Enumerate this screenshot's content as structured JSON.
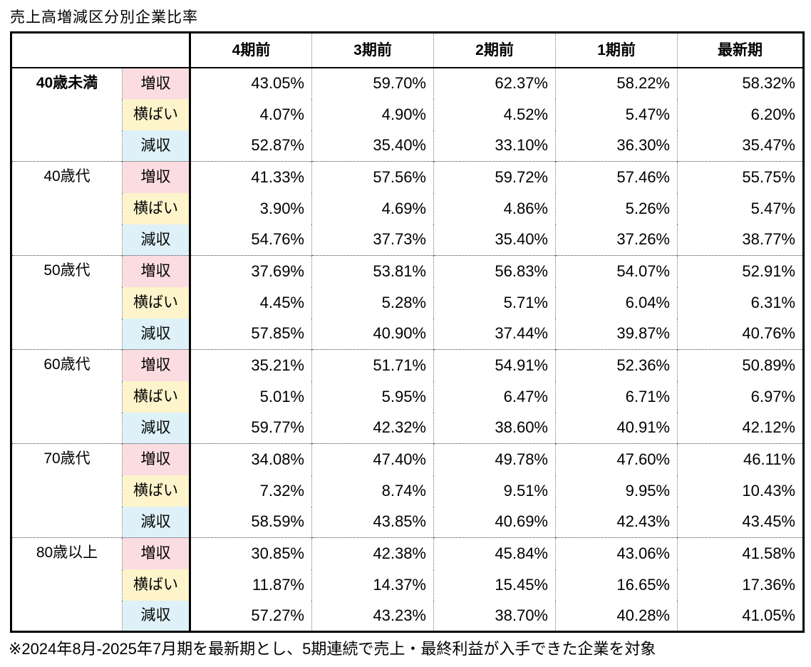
{
  "title": "売上高増減区分別企業比率",
  "footnote": "※2024年8月-2025年7月期を最新期とし、5期連続で売上・最終利益が入手できた企業を対象",
  "colors": {
    "increase_bg": "#fbdce1",
    "flat_bg": "#fdf4cb",
    "decrease_bg": "#def1f8",
    "border": "#000000",
    "text": "#000000"
  },
  "chart_data": {
    "type": "table",
    "title": "売上高増減区分別企業比率",
    "columns": [
      "4期前",
      "3期前",
      "2期前",
      "1期前",
      "最新期"
    ],
    "row_categories": [
      "増収",
      "横ばい",
      "減収"
    ],
    "groups": [
      {
        "age": "40歳未満",
        "bold": true,
        "rows": [
          {
            "label": "増収",
            "values": [
              "43.05%",
              "59.70%",
              "62.37%",
              "58.22%",
              "58.32%"
            ]
          },
          {
            "label": "横ばい",
            "values": [
              "4.07%",
              "4.90%",
              "4.52%",
              "5.47%",
              "6.20%"
            ]
          },
          {
            "label": "減収",
            "values": [
              "52.87%",
              "35.40%",
              "33.10%",
              "36.30%",
              "35.47%"
            ]
          }
        ]
      },
      {
        "age": "40歳代",
        "bold": false,
        "rows": [
          {
            "label": "増収",
            "values": [
              "41.33%",
              "57.56%",
              "59.72%",
              "57.46%",
              "55.75%"
            ]
          },
          {
            "label": "横ばい",
            "values": [
              "3.90%",
              "4.69%",
              "4.86%",
              "5.26%",
              "5.47%"
            ]
          },
          {
            "label": "減収",
            "values": [
              "54.76%",
              "37.73%",
              "35.40%",
              "37.26%",
              "38.77%"
            ]
          }
        ]
      },
      {
        "age": "50歳代",
        "bold": false,
        "rows": [
          {
            "label": "増収",
            "values": [
              "37.69%",
              "53.81%",
              "56.83%",
              "54.07%",
              "52.91%"
            ]
          },
          {
            "label": "横ばい",
            "values": [
              "4.45%",
              "5.28%",
              "5.71%",
              "6.04%",
              "6.31%"
            ]
          },
          {
            "label": "減収",
            "values": [
              "57.85%",
              "40.90%",
              "37.44%",
              "39.87%",
              "40.76%"
            ]
          }
        ]
      },
      {
        "age": "60歳代",
        "bold": false,
        "rows": [
          {
            "label": "増収",
            "values": [
              "35.21%",
              "51.71%",
              "54.91%",
              "52.36%",
              "50.89%"
            ]
          },
          {
            "label": "横ばい",
            "values": [
              "5.01%",
              "5.95%",
              "6.47%",
              "6.71%",
              "6.97%"
            ]
          },
          {
            "label": "減収",
            "values": [
              "59.77%",
              "42.32%",
              "38.60%",
              "40.91%",
              "42.12%"
            ]
          }
        ]
      },
      {
        "age": "70歳代",
        "bold": false,
        "rows": [
          {
            "label": "増収",
            "values": [
              "34.08%",
              "47.40%",
              "49.78%",
              "47.60%",
              "46.11%"
            ]
          },
          {
            "label": "横ばい",
            "values": [
              "7.32%",
              "8.74%",
              "9.51%",
              "9.95%",
              "10.43%"
            ]
          },
          {
            "label": "減収",
            "values": [
              "58.59%",
              "43.85%",
              "40.69%",
              "42.43%",
              "43.45%"
            ]
          }
        ]
      },
      {
        "age": "80歳以上",
        "bold": false,
        "rows": [
          {
            "label": "増収",
            "values": [
              "30.85%",
              "42.38%",
              "45.84%",
              "43.06%",
              "41.58%"
            ]
          },
          {
            "label": "横ばい",
            "values": [
              "11.87%",
              "14.37%",
              "15.45%",
              "16.65%",
              "17.36%"
            ]
          },
          {
            "label": "減収",
            "values": [
              "57.27%",
              "43.23%",
              "38.70%",
              "40.28%",
              "41.05%"
            ]
          }
        ]
      }
    ]
  }
}
